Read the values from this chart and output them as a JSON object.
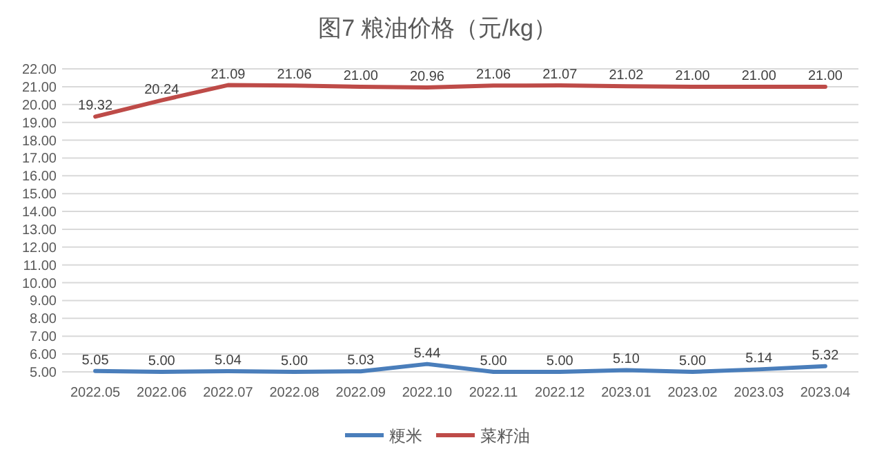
{
  "chart_data": {
    "type": "line",
    "title": "图7 粮油价格（元/kg）",
    "categories": [
      "2022.05",
      "2022.06",
      "2022.07",
      "2022.08",
      "2022.09",
      "2022.10",
      "2022.11",
      "2022.12",
      "2023.01",
      "2023.02",
      "2023.03",
      "2023.04"
    ],
    "series": [
      {
        "name": "粳米",
        "color": "#4a7ebb",
        "values": [
          5.05,
          5.0,
          5.04,
          5.0,
          5.03,
          5.44,
          5.0,
          5.0,
          5.1,
          5.0,
          5.14,
          5.32
        ],
        "value_labels": [
          "5.05",
          "5.00",
          "5.04",
          "5.00",
          "5.03",
          "5.44",
          "5.00",
          "5.00",
          "5.10",
          "5.00",
          "5.14",
          "5.32"
        ]
      },
      {
        "name": "菜籽油",
        "color": "#be4b48",
        "values": [
          19.32,
          20.24,
          21.09,
          21.06,
          21.0,
          20.96,
          21.06,
          21.07,
          21.02,
          21.0,
          21.0,
          21.0
        ],
        "value_labels": [
          "19.32",
          "20.24",
          "21.09",
          "21.06",
          "21.00",
          "20.96",
          "21.06",
          "21.07",
          "21.02",
          "21.00",
          "21.00",
          "21.00"
        ]
      }
    ],
    "ylim": [
      5,
      22
    ],
    "yticks": [
      {
        "value": 5,
        "label": "5.00"
      },
      {
        "value": 6,
        "label": "6.00"
      },
      {
        "value": 7,
        "label": "7.00"
      },
      {
        "value": 8,
        "label": "8.00"
      },
      {
        "value": 9,
        "label": "9.00"
      },
      {
        "value": 10,
        "label": "10.00"
      },
      {
        "value": 11,
        "label": "11.00"
      },
      {
        "value": 12,
        "label": "12.00"
      },
      {
        "value": 13,
        "label": "13.00"
      },
      {
        "value": 14,
        "label": "14.00"
      },
      {
        "value": 15,
        "label": "15.00"
      },
      {
        "value": 16,
        "label": "16.00"
      },
      {
        "value": 17,
        "label": "17.00"
      },
      {
        "value": 18,
        "label": "18.00"
      },
      {
        "value": 19,
        "label": "19.00"
      },
      {
        "value": 20,
        "label": "20.00"
      },
      {
        "value": 21,
        "label": "21.00"
      },
      {
        "value": 22,
        "label": "22.00"
      }
    ],
    "grid": "y",
    "legend": "bottom",
    "marker": "none",
    "line_style": "solid"
  }
}
